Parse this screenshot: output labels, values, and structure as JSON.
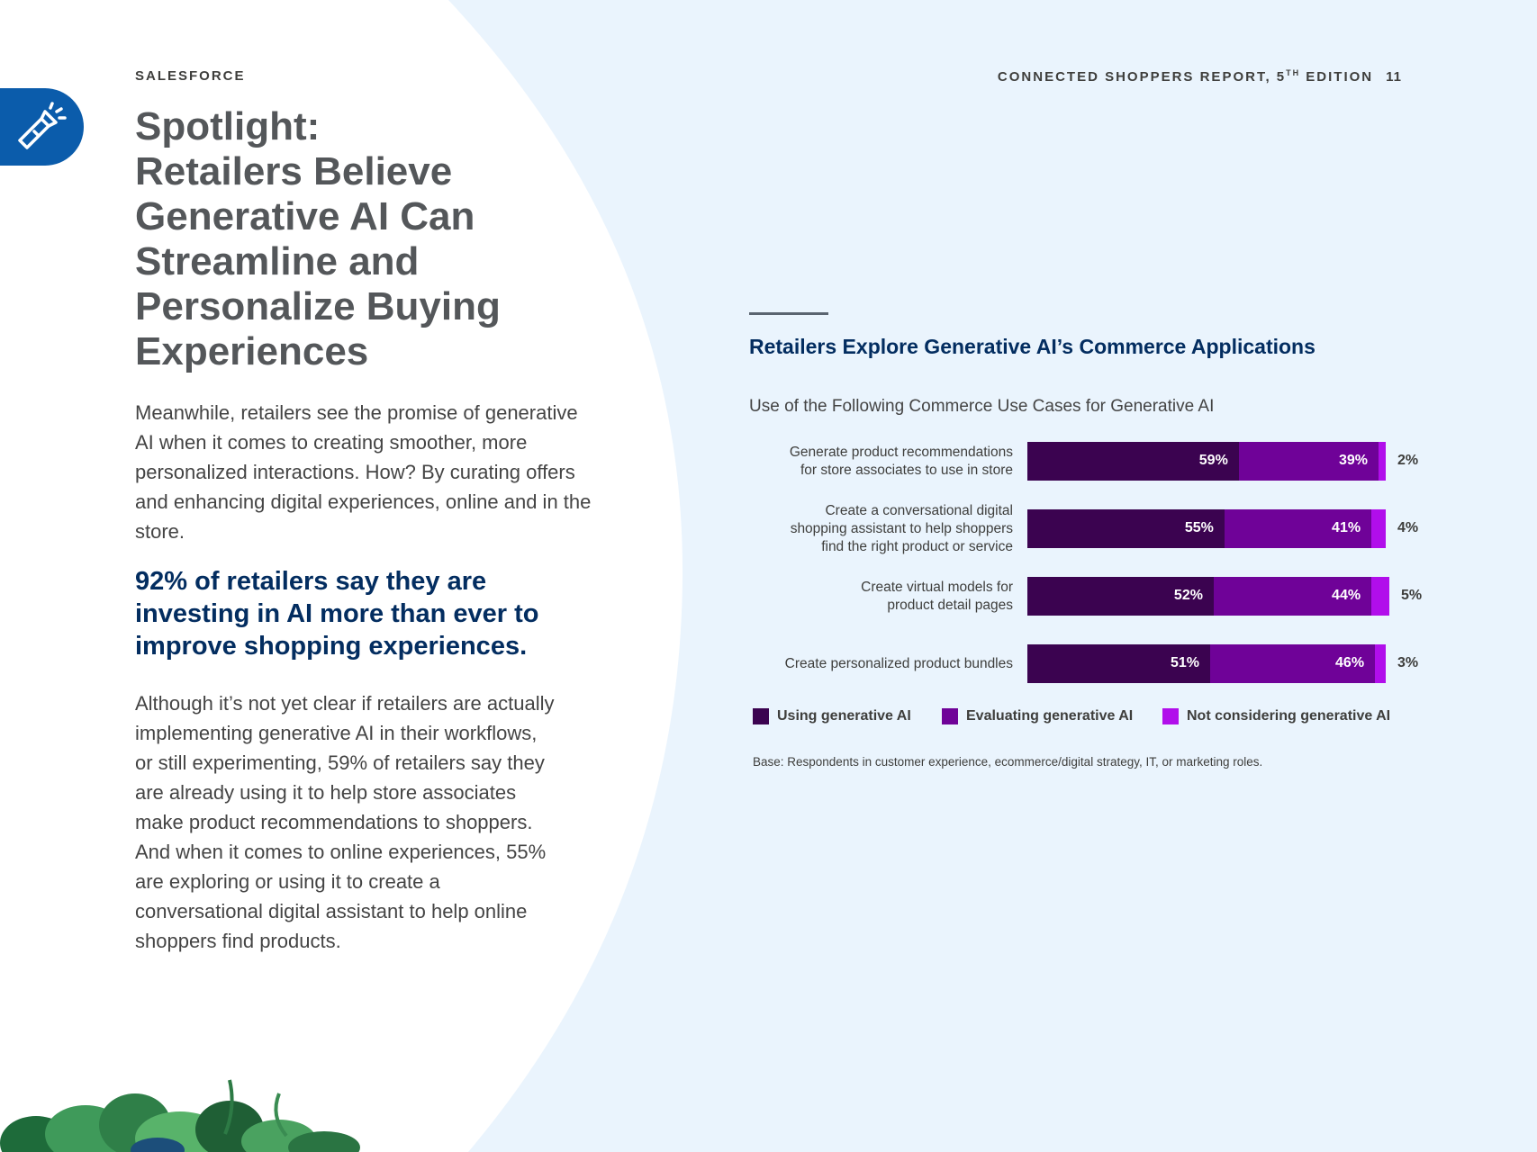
{
  "header": {
    "brand": "SALESFORCE",
    "report_title_pre": "CONNECTED SHOPPERS REPORT, 5",
    "report_title_sup": "TH",
    "report_title_post": " EDITION",
    "page_number": "11"
  },
  "spotlight": {
    "icon": "flashlight-icon",
    "title_lines": [
      "Spotlight:",
      "Retailers Believe",
      "Generative AI Can",
      "Streamline and",
      "Personalize Buying",
      "Experiences"
    ],
    "paragraph1": "Meanwhile, retailers see the promise of generative AI when it comes to creating smoother, more personalized interactions. How? By curating offers and enhancing digital experiences, online and in the store.",
    "stat": "92% of retailers say they are investing in AI more than ever to improve shopping experiences.",
    "paragraph2": "Although it’s not yet clear if retailers are actually implementing generative AI in their workflows, or still experimenting, 59% of retailers say they are already using it to help store associates make product recommendations to shoppers. And when it comes to online experiences, 55% are exploring or using it to create a conversational digital assistant to help online shoppers find products."
  },
  "chart_data": {
    "type": "bar",
    "orientation": "horizontal",
    "stacked": true,
    "title": "Retailers Explore Generative AI’s Commerce Applications",
    "subtitle": "Use of the Following Commerce Use Cases for Generative AI",
    "categories": [
      [
        "Generate product recommendations",
        "for store associates to use in store"
      ],
      [
        "Create a conversational digital",
        "shopping assistant to help shoppers",
        "find the right product or service"
      ],
      [
        "Create virtual models for",
        "product detail pages"
      ],
      [
        "Create personalized product bundles"
      ]
    ],
    "series": [
      {
        "name": "Using generative AI",
        "color": "#3b0350",
        "values": [
          59,
          55,
          52,
          51
        ]
      },
      {
        "name": "Evaluating generative AI",
        "color": "#6f0298",
        "values": [
          39,
          41,
          44,
          46
        ]
      },
      {
        "name": "Not considering generative AI",
        "color": "#b10eeb",
        "values": [
          2,
          4,
          5,
          3
        ]
      }
    ],
    "value_suffix": "%",
    "xlim": [
      0,
      100
    ],
    "legend_position": "bottom",
    "note": "Base: Respondents in customer experience, ecommerce/digital strategy, IT, or marketing roles."
  },
  "decor": {
    "foliage": "leaves-illustration"
  }
}
